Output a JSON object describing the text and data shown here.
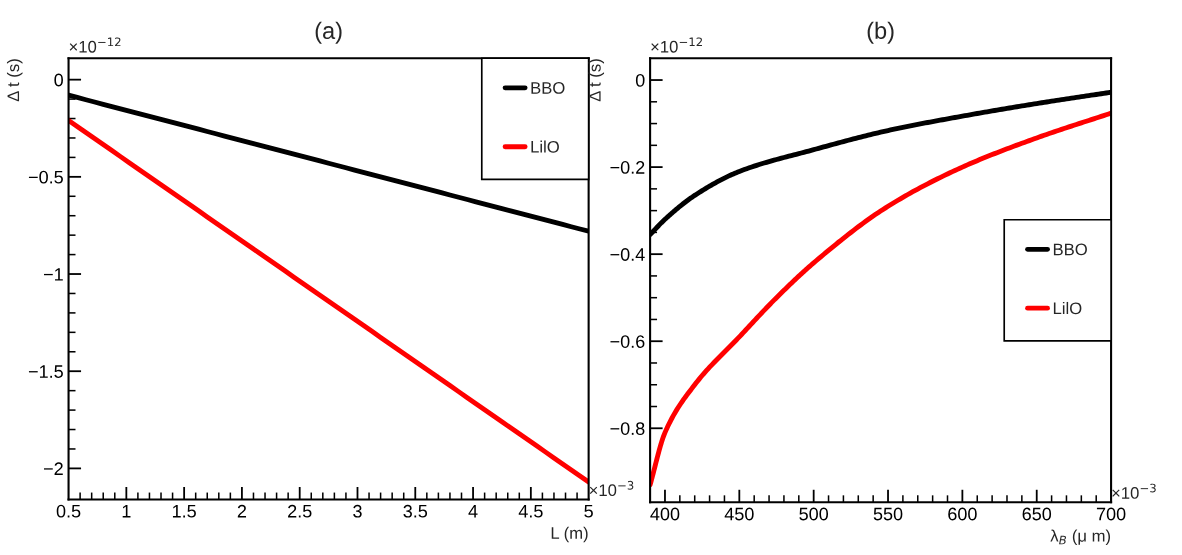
{
  "chart_data": [
    {
      "type": "line",
      "title": "(a)",
      "xlabel": "L (m)",
      "ylabel": "Δ t (s)",
      "annotations": [
        "×10$^{−12}$",
        "×10$^{−3}$"
      ],
      "xlim": [
        0.5,
        5
      ],
      "ylim": [
        -2.16,
        0.11
      ],
      "xticks": [
        0.5,
        1,
        1.5,
        2,
        2.5,
        3,
        3.5,
        4,
        4.5,
        5
      ],
      "yticks": [
        {
          "value": -2,
          "label": "−2"
        },
        {
          "value": -1.5,
          "label": "−1.5"
        },
        {
          "value": -1,
          "label": "−1"
        },
        {
          "value": -0.5,
          "label": "−0.5"
        },
        0
      ],
      "grid": false,
      "legend": "top right",
      "marker": "none",
      "line_style": "solid",
      "series": [
        {
          "name": "BBO",
          "color": "#000000",
          "x": [
            0.5,
            2.75,
            5
          ],
          "values": [
            -0.08,
            -0.43,
            -0.78
          ]
        },
        {
          "name": "LilO",
          "color": "#ff0000",
          "x": [
            0.5,
            2.75,
            5
          ],
          "values": [
            -0.21,
            -1.14,
            -2.07
          ]
        }
      ]
    },
    {
      "type": "line",
      "title": "(b)",
      "xlabel": "λ$_{B}$ (μ m)",
      "ylabel": "Δ t (s)",
      "annotations": [
        "×10$^{−12}$",
        "×10$^{−3}$"
      ],
      "xlim": [
        390,
        700
      ],
      "ylim": [
        -0.97,
        0.05
      ],
      "xticks": [
        400,
        450,
        500,
        550,
        600,
        650,
        700
      ],
      "yticks": [
        {
          "value": -0.8,
          "label": "−0.8"
        },
        {
          "value": -0.6,
          "label": "−0.6"
        },
        {
          "value": -0.4,
          "label": "−0.4"
        },
        {
          "value": -0.2,
          "label": "−0.2"
        },
        0
      ],
      "grid": false,
      "legend": "right",
      "marker": "none",
      "line_style": "solid",
      "series": [
        {
          "name": "BBO",
          "color": "#000000",
          "x": [
            390,
            400,
            420,
            450,
            500,
            550,
            600,
            650,
            700
          ],
          "values": [
            -0.355,
            -0.32,
            -0.265,
            -0.21,
            -0.16,
            -0.116,
            -0.083,
            -0.054,
            -0.028
          ]
        },
        {
          "name": "LilO",
          "color": "#ff0000",
          "x": [
            390,
            400,
            420,
            450,
            475,
            500,
            550,
            600,
            650,
            700
          ],
          "values": [
            -0.93,
            -0.81,
            -0.7,
            -0.59,
            -0.5,
            -0.42,
            -0.29,
            -0.2,
            -0.133,
            -0.076
          ]
        }
      ]
    }
  ]
}
